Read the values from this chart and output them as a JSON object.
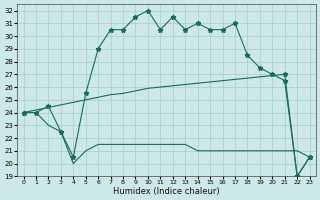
{
  "xlabel": "Humidex (Indice chaleur)",
  "xlim": [
    -0.5,
    23.5
  ],
  "ylim": [
    19,
    32.5
  ],
  "yticks": [
    19,
    20,
    21,
    22,
    23,
    24,
    25,
    26,
    27,
    28,
    29,
    30,
    31,
    32
  ],
  "xticks": [
    0,
    1,
    2,
    3,
    4,
    5,
    6,
    7,
    8,
    9,
    10,
    11,
    12,
    13,
    14,
    15,
    16,
    17,
    18,
    19,
    20,
    21,
    22,
    23
  ],
  "bg_color": "#cce8e8",
  "grid_color": "#aacccc",
  "line_color": "#1a6b5a",
  "jagged_x": [
    0,
    1,
    2,
    3,
    4,
    5,
    6,
    7,
    8,
    9,
    10,
    11,
    12,
    13,
    14,
    15,
    16,
    17,
    18,
    19,
    20,
    21,
    22,
    23
  ],
  "jagged_y": [
    24.0,
    24.0,
    24.5,
    22.5,
    20.5,
    25.5,
    29.0,
    30.5,
    30.5,
    31.5,
    32.0,
    30.5,
    31.5,
    30.5,
    31.0,
    30.5,
    30.5,
    31.0,
    28.5,
    27.5,
    27.0,
    26.5,
    19.0,
    20.5
  ],
  "trend_x": [
    0,
    1,
    2,
    3,
    4,
    5,
    6,
    7,
    8,
    9,
    10,
    11,
    12,
    13,
    14,
    15,
    16,
    17,
    18,
    19,
    20,
    21,
    22,
    23
  ],
  "trend_y": [
    24.0,
    24.2,
    24.4,
    24.6,
    24.8,
    25.0,
    25.2,
    25.4,
    25.5,
    25.7,
    25.9,
    26.0,
    26.1,
    26.2,
    26.3,
    26.4,
    26.5,
    26.6,
    26.7,
    26.8,
    26.9,
    27.0,
    19.0,
    20.5
  ],
  "bot_x": [
    0,
    1,
    2,
    3,
    4,
    5,
    6,
    7,
    8,
    9,
    10,
    11,
    12,
    13,
    14,
    15,
    16,
    17,
    18,
    19,
    20,
    21,
    22,
    23
  ],
  "bot_y": [
    24.0,
    24.0,
    23.0,
    22.5,
    20.0,
    21.0,
    21.5,
    21.5,
    21.5,
    21.5,
    21.5,
    21.5,
    21.5,
    21.5,
    21.0,
    21.0,
    21.0,
    21.0,
    21.0,
    21.0,
    21.0,
    21.0,
    21.0,
    20.5
  ]
}
